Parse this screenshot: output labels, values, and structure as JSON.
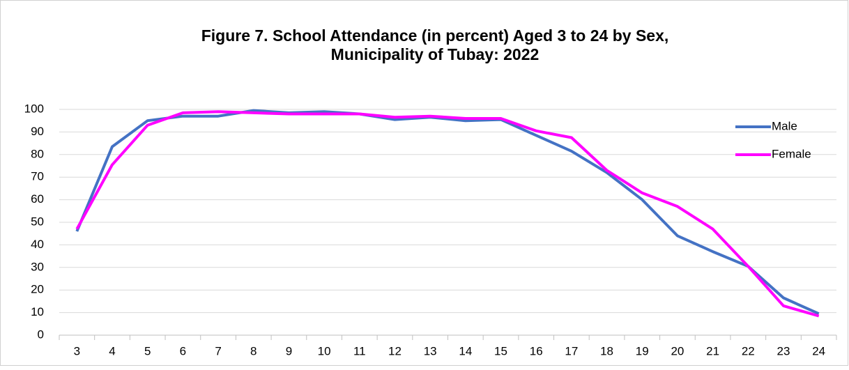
{
  "chart_data": {
    "type": "line",
    "title": "Figure 7. School Attendance (in percent) Aged 3 to 24 by Sex,",
    "subtitle": "Municipality of Tubay: 2022",
    "categories": [
      "3",
      "4",
      "5",
      "6",
      "7",
      "8",
      "9",
      "10",
      "11",
      "12",
      "13",
      "14",
      "15",
      "16",
      "17",
      "18",
      "19",
      "20",
      "21",
      "22",
      "23",
      "24"
    ],
    "series": [
      {
        "name": "Male",
        "color": "#4472c4",
        "values": [
          46,
          83.5,
          95,
          97,
          97,
          99.5,
          98.5,
          99,
          98,
          95.5,
          96.5,
          95,
          95.5,
          88.5,
          81.5,
          72,
          60,
          44,
          37,
          30.5,
          16.5,
          9.5
        ]
      },
      {
        "name": "Female",
        "color": "#ff00ff",
        "values": [
          47,
          75.5,
          93,
          98.5,
          99,
          98.5,
          98,
          98,
          98,
          96.5,
          97,
          96,
          96,
          90.5,
          87.5,
          73,
          63,
          57,
          47,
          30.5,
          13,
          8.5
        ]
      }
    ],
    "ylim": [
      0,
      100
    ],
    "yticks": [
      0,
      10,
      20,
      30,
      40,
      50,
      60,
      70,
      80,
      90,
      100
    ],
    "grid": true,
    "legend": "right"
  }
}
